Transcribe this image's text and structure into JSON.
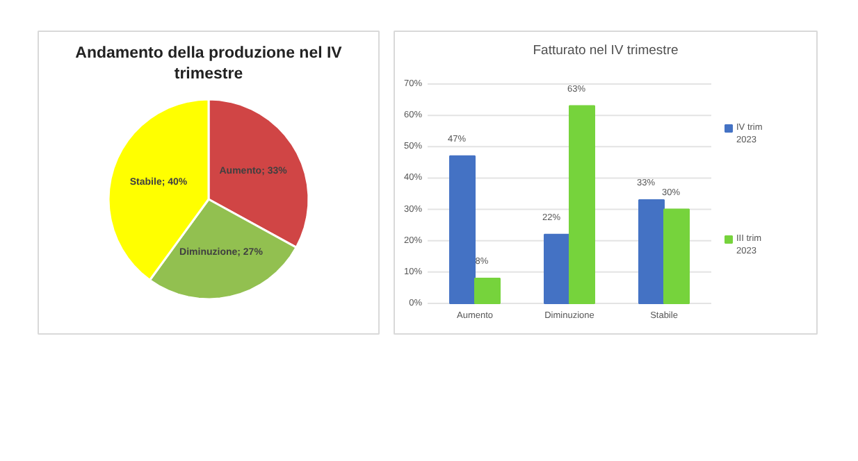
{
  "chart_data": [
    {
      "type": "pie",
      "title": "Andamento della produzione nel IV trimestre",
      "categories": [
        "Aumento",
        "Diminuzione",
        "Stabile"
      ],
      "values": [
        33,
        27,
        40
      ],
      "colors": [
        "#d04545",
        "#92c050",
        "#ffff00"
      ],
      "value_labels": [
        "; 33%",
        "; 27%",
        "; 40%"
      ]
    },
    {
      "type": "bar",
      "title": "Fatturato nel IV trimestre",
      "categories": [
        "Aumento",
        "Diminuzione",
        "Stabile"
      ],
      "series": [
        {
          "name": "IV trim 2023",
          "color": "#4472c4",
          "values": [
            47,
            22,
            33
          ],
          "value_labels": [
            "47%",
            "22%",
            "33%"
          ]
        },
        {
          "name": "III trim 2023",
          "color": "#76d33c",
          "values": [
            8,
            63,
            30
          ],
          "value_labels": [
            "8%",
            "63%",
            "30%"
          ]
        }
      ],
      "ylim": [
        0,
        70
      ],
      "yticks": [
        {
          "value": 0,
          "label": "0%"
        },
        {
          "value": 10,
          "label": "10%"
        },
        {
          "value": 20,
          "label": "20%"
        },
        {
          "value": 30,
          "label": "30%"
        },
        {
          "value": 40,
          "label": "40%"
        },
        {
          "value": 50,
          "label": "50%"
        },
        {
          "value": 60,
          "label": "60%"
        },
        {
          "value": 70,
          "label": "70%"
        }
      ],
      "grid": "y",
      "legend": "right"
    }
  ]
}
